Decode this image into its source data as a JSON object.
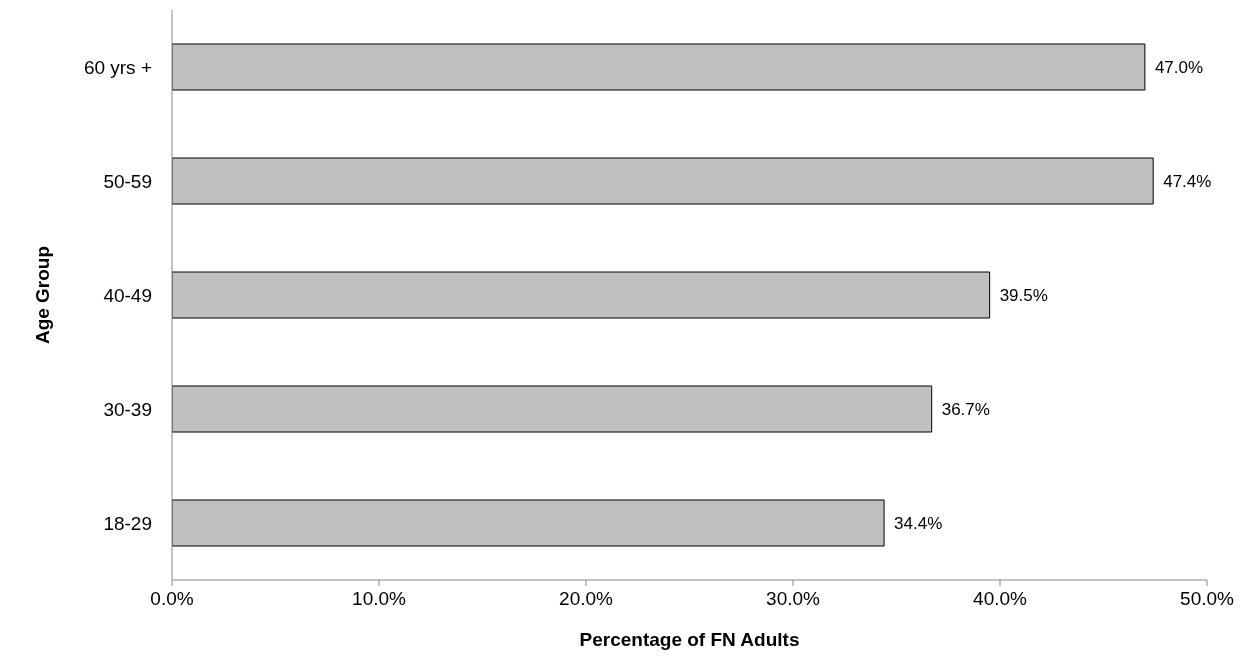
{
  "chart_data": {
    "type": "bar",
    "orientation": "horizontal",
    "xlabel": "Percentage of FN Adults",
    "ylabel": "Age Group",
    "categories": [
      "60 yrs +",
      "50-59",
      "40-49",
      "30-39",
      "18-29"
    ],
    "values": [
      47.0,
      47.4,
      39.5,
      36.7,
      34.4
    ],
    "value_labels": [
      "47.0%",
      "47.4%",
      "39.5%",
      "36.7%",
      "34.4%"
    ],
    "color": "#c0c0c0",
    "xlim": [
      0,
      50
    ],
    "xticks": [
      {
        "value": 0,
        "label": "0.0%"
      },
      {
        "value": 10,
        "label": "10.0%"
      },
      {
        "value": 20,
        "label": "20.0%"
      },
      {
        "value": 30,
        "label": "30.0%"
      },
      {
        "value": 40,
        "label": "40.0%"
      },
      {
        "value": 50,
        "label": "50.0%"
      }
    ],
    "grid": false,
    "legend": false
  }
}
